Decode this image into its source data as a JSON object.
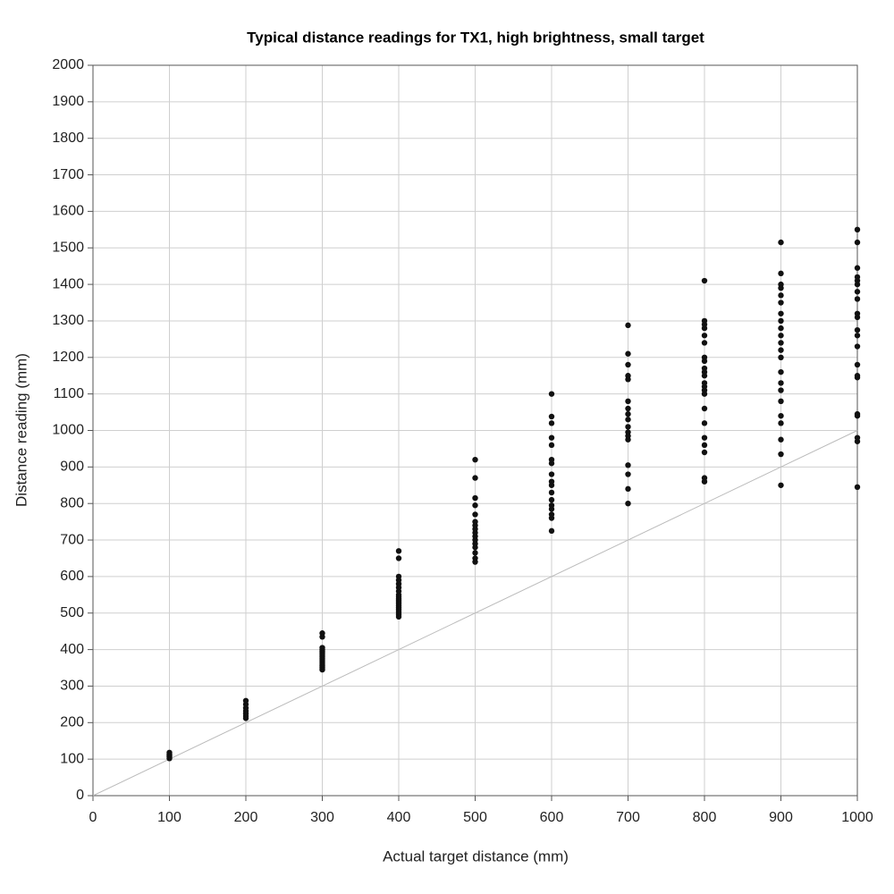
{
  "chart_data": {
    "type": "scatter",
    "title": "Typical distance readings for TX1, high brightness, small target",
    "x_label": "Actual target distance (mm)",
    "y_label": "Distance reading (mm)",
    "xlim": [
      0,
      1000
    ],
    "ylim": [
      0,
      2000
    ],
    "xticks": [
      0,
      100,
      200,
      300,
      400,
      500,
      600,
      700,
      800,
      900,
      1000
    ],
    "yticks": [
      0,
      100,
      200,
      300,
      400,
      500,
      600,
      700,
      800,
      900,
      1000,
      1100,
      1200,
      1300,
      1400,
      1500,
      1600,
      1700,
      1800,
      1900,
      2000
    ],
    "grid": true,
    "reference_line": {
      "x": [
        0,
        1000
      ],
      "values": [
        0,
        1000
      ],
      "color": "#bbbbbb"
    },
    "series": [
      {
        "color": "#111111",
        "x": [
          100,
          100,
          100,
          100,
          100
        ],
        "values": [
          102,
          106,
          110,
          114,
          118
        ]
      },
      {
        "color": "#111111",
        "x": [
          200,
          200,
          200,
          200,
          200,
          200,
          200
        ],
        "values": [
          212,
          218,
          225,
          232,
          240,
          250,
          260
        ]
      },
      {
        "color": "#111111",
        "x": [
          300,
          300,
          300,
          300,
          300,
          300,
          300,
          300,
          300,
          300,
          300,
          300,
          300,
          300,
          300
        ],
        "values": [
          345,
          350,
          355,
          360,
          365,
          370,
          375,
          380,
          385,
          390,
          395,
          400,
          405,
          435,
          445
        ]
      },
      {
        "color": "#111111",
        "x": [
          400,
          400,
          400,
          400,
          400,
          400,
          400,
          400,
          400,
          400,
          400,
          400,
          400,
          400,
          400,
          400,
          400,
          400,
          400,
          400
        ],
        "values": [
          490,
          495,
          500,
          505,
          510,
          515,
          520,
          525,
          530,
          535,
          540,
          545,
          550,
          560,
          570,
          580,
          590,
          600,
          650,
          670
        ]
      },
      {
        "color": "#111111",
        "x": [
          500,
          500,
          500,
          500,
          500,
          500,
          500,
          500,
          500,
          500,
          500,
          500,
          500,
          500,
          500,
          500
        ],
        "values": [
          640,
          650,
          665,
          680,
          690,
          700,
          710,
          720,
          730,
          740,
          750,
          770,
          795,
          815,
          870,
          920
        ]
      },
      {
        "color": "#111111",
        "x": [
          600,
          600,
          600,
          600,
          600,
          600,
          600,
          600,
          600,
          600,
          600,
          600,
          600,
          600,
          600,
          600,
          600
        ],
        "values": [
          725,
          760,
          770,
          785,
          795,
          810,
          830,
          850,
          860,
          880,
          910,
          920,
          960,
          980,
          1020,
          1038,
          1100
        ]
      },
      {
        "color": "#111111",
        "x": [
          700,
          700,
          700,
          700,
          700,
          700,
          700,
          700,
          700,
          700,
          700,
          700,
          700,
          700,
          700,
          700,
          700
        ],
        "values": [
          800,
          840,
          880,
          905,
          975,
          985,
          995,
          1010,
          1030,
          1045,
          1060,
          1080,
          1140,
          1150,
          1180,
          1210,
          1288
        ]
      },
      {
        "color": "#111111",
        "x": [
          800,
          800,
          800,
          800,
          800,
          800,
          800,
          800,
          800,
          800,
          800,
          800,
          800,
          800,
          800,
          800,
          800,
          800,
          800,
          800,
          800,
          800
        ],
        "values": [
          860,
          870,
          940,
          960,
          980,
          1020,
          1060,
          1100,
          1110,
          1120,
          1130,
          1150,
          1160,
          1170,
          1190,
          1200,
          1240,
          1260,
          1280,
          1290,
          1300,
          1410
        ]
      },
      {
        "color": "#111111",
        "x": [
          900,
          900,
          900,
          900,
          900,
          900,
          900,
          900,
          900,
          900,
          900,
          900,
          900,
          900,
          900,
          900,
          900,
          900,
          900,
          900,
          900,
          900
        ],
        "values": [
          850,
          935,
          975,
          1020,
          1040,
          1080,
          1110,
          1130,
          1160,
          1200,
          1220,
          1240,
          1260,
          1280,
          1300,
          1320,
          1350,
          1370,
          1390,
          1400,
          1430,
          1515
        ]
      },
      {
        "color": "#111111",
        "x": [
          1000,
          1000,
          1000,
          1000,
          1000,
          1000,
          1000,
          1000,
          1000,
          1000,
          1000,
          1000,
          1000,
          1000,
          1000,
          1000,
          1000,
          1000,
          1000,
          1000,
          1000
        ],
        "values": [
          845,
          970,
          980,
          1040,
          1045,
          1145,
          1150,
          1180,
          1230,
          1260,
          1275,
          1310,
          1320,
          1360,
          1380,
          1400,
          1410,
          1420,
          1445,
          1515,
          1550
        ]
      }
    ]
  }
}
